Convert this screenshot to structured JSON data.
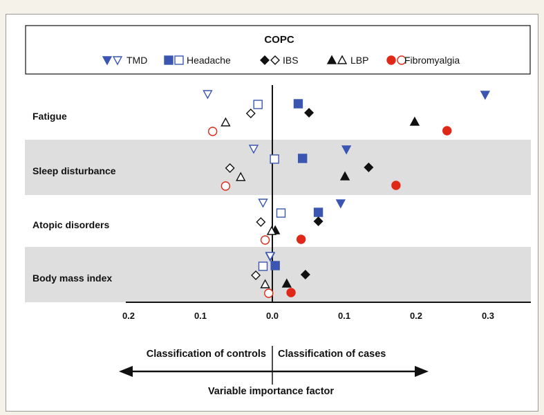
{
  "chart_data": {
    "type": "scatter",
    "title": "COPC",
    "x_axis": {
      "range": [
        -0.2,
        0.3
      ],
      "ticks": [
        -0.2,
        -0.1,
        0.0,
        0.1,
        0.2,
        0.3
      ],
      "tick_labels": [
        "0.2",
        "0.1",
        "0.0",
        "0.1",
        "0.2",
        "0.3"
      ]
    },
    "annotations": {
      "left": "Classification of controls",
      "right": "Classification of cases",
      "axis_title": "Variable importance factor"
    },
    "categories": [
      "Fatigue",
      "Sleep disturbance",
      "Atopic disorders",
      "Body mass index"
    ],
    "shaded_categories": [
      "Sleep disturbance",
      "Body mass index"
    ],
    "legend_placement": "top",
    "series": [
      {
        "name": "TMD",
        "color": "#3a56b0",
        "marker": "triangle-down",
        "filled": [
          0.296,
          0.103,
          0.095,
          -0.003
        ],
        "open": [
          -0.09,
          -0.026,
          -0.013,
          -0.003
        ]
      },
      {
        "name": "Headache",
        "color": "#3a56b0",
        "marker": "square",
        "filled": [
          0.036,
          0.042,
          0.064,
          0.004
        ],
        "open": [
          -0.02,
          0.003,
          0.012,
          -0.013
        ]
      },
      {
        "name": "IBS",
        "color": "#111111",
        "marker": "diamond",
        "filled": [
          0.051,
          0.134,
          0.064,
          0.046
        ],
        "open": [
          -0.03,
          -0.059,
          -0.016,
          -0.023
        ]
      },
      {
        "name": "LBP",
        "color": "#111111",
        "marker": "triangle-up",
        "filled": [
          0.198,
          0.101,
          0.004,
          0.02
        ],
        "open": [
          -0.065,
          -0.044,
          -0.001,
          -0.01
        ]
      },
      {
        "name": "Fibromyalgia",
        "color": "#e02818",
        "marker": "circle",
        "filled": [
          0.243,
          0.172,
          0.04,
          0.026
        ],
        "open": [
          -0.083,
          -0.065,
          -0.01,
          -0.005
        ]
      }
    ]
  }
}
